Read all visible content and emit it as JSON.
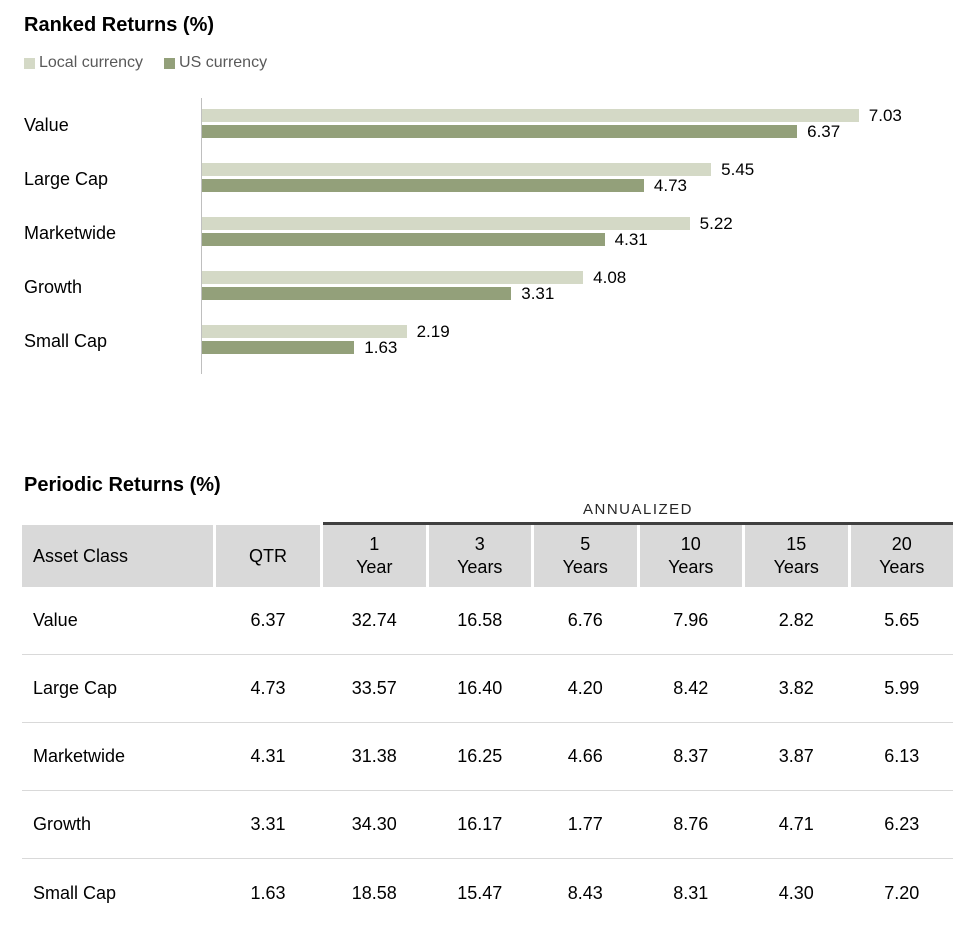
{
  "chart_data": {
    "type": "bar",
    "orientation": "horizontal",
    "title": "Ranked Returns (%)",
    "categories": [
      "Value",
      "Large Cap",
      "Marketwide",
      "Growth",
      "Small Cap"
    ],
    "series": [
      {
        "name": "Local currency",
        "color": "#d4d9c6",
        "values": [
          7.03,
          5.45,
          5.22,
          4.08,
          2.19
        ]
      },
      {
        "name": "US currency",
        "color": "#93a07a",
        "values": [
          6.37,
          4.73,
          4.31,
          3.31,
          1.63
        ]
      }
    ],
    "xlim": [
      0,
      8.06
    ],
    "value_labels": true,
    "legend_position": "top",
    "grid": false,
    "axis_line_color": "#bfbfbf"
  },
  "ranked_returns": {
    "title": "Ranked Returns (%)"
  },
  "periodic_returns": {
    "title": "Periodic Returns (%)",
    "annualized_label": "ANNUALIZED",
    "header": {
      "asset_class": "Asset Class",
      "qtr": "QTR",
      "year_columns": [
        [
          "1",
          "Year"
        ],
        [
          "3",
          "Years"
        ],
        [
          "5",
          "Years"
        ],
        [
          "10",
          "Years"
        ],
        [
          "15",
          "Years"
        ],
        [
          "20",
          "Years"
        ]
      ]
    },
    "rows": [
      {
        "label": "Value",
        "qtr": "6.37",
        "annualized": [
          "32.74",
          "16.58",
          "6.76",
          "7.96",
          "2.82",
          "5.65"
        ]
      },
      {
        "label": "Large Cap",
        "qtr": "4.73",
        "annualized": [
          "33.57",
          "16.40",
          "4.20",
          "8.42",
          "3.82",
          "5.99"
        ]
      },
      {
        "label": "Marketwide",
        "qtr": "4.31",
        "annualized": [
          "31.38",
          "16.25",
          "4.66",
          "8.37",
          "3.87",
          "6.13"
        ]
      },
      {
        "label": "Growth",
        "qtr": "3.31",
        "annualized": [
          "34.30",
          "16.17",
          "1.77",
          "8.76",
          "4.71",
          "6.23"
        ]
      },
      {
        "label": "Small Cap",
        "qtr": "1.63",
        "annualized": [
          "18.58",
          "15.47",
          "8.43",
          "8.31",
          "4.30",
          "7.20"
        ]
      }
    ],
    "colors": {
      "header_background": "#d9d9d9",
      "annualized_rule": "#404040",
      "row_separator": "#d9d9d9"
    }
  }
}
